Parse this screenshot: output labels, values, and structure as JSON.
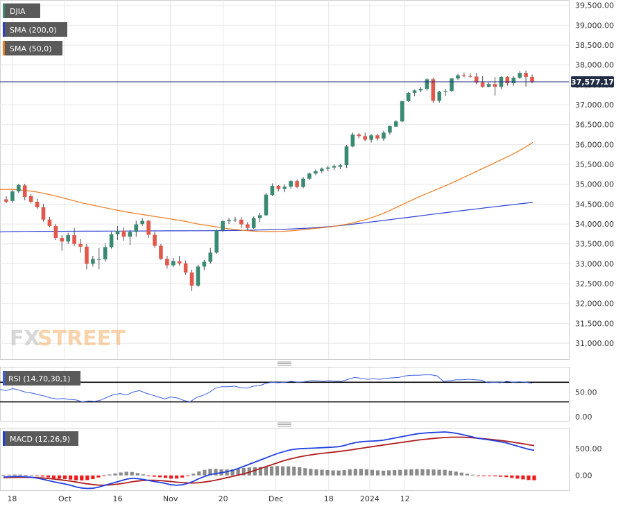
{
  "colors": {
    "bull": "#3a8a73",
    "bear": "#e2584b",
    "sma200": "#2c3fd1",
    "sma50": "#ee7a1c",
    "rsi": "#3b5ee8",
    "macd": "#1f40e0",
    "signal": "#b01c1c",
    "hist_pos": "#8a8a8a",
    "hist_neg": "#ee1c1c",
    "price_line": "#1e2a78",
    "label_bg": "#1f2c44",
    "grid": "#e6e6e6"
  },
  "legend": {
    "djia": "DJIA",
    "sma200": "SMA (200,0)",
    "sma50": "SMA (50,0)",
    "rsi": "RSI (14,70,30,1)",
    "macd": "MACD (12,26,9)"
  },
  "watermark": "FXSTREET",
  "chart_data": [
    {
      "type": "candlestick",
      "title": "",
      "symbol": "DJIA",
      "last_price_label": "37,577.17",
      "last_price": 37577.17,
      "ylim": [
        30600,
        39600
      ],
      "y_ticks": [
        31000,
        31500,
        32000,
        32500,
        33000,
        33500,
        34000,
        34500,
        35000,
        35500,
        36000,
        36500,
        37000,
        37500,
        38000,
        38500,
        39000,
        39500
      ],
      "y_tick_labels": [
        "31,000.00",
        "31,500.00",
        "32,000.00",
        "32,500.00",
        "33,000.00",
        "33,500.00",
        "34,000.00",
        "34,500.00",
        "35,000.00",
        "35,500.00",
        "36,000.00",
        "36,500.00",
        "37,000.00",
        "37,500.00",
        "38,000.00",
        "38,500.00",
        "39,000.00",
        "39,500.00"
      ],
      "x_tick_labels": [
        "18",
        "Oct",
        "16",
        "Nov",
        "20",
        "Dec",
        "18",
        "2024",
        "12"
      ],
      "x_tick_index": [
        1,
        10,
        19,
        28,
        37,
        46,
        55,
        62,
        68
      ],
      "candles": [
        [
          34620,
          34700,
          34520,
          34560
        ],
        [
          34580,
          34850,
          34540,
          34820
        ],
        [
          34820,
          35010,
          34780,
          34980
        ],
        [
          34970,
          35010,
          34600,
          34680
        ],
        [
          34700,
          34750,
          34520,
          34560
        ],
        [
          34560,
          34640,
          34380,
          34420
        ],
        [
          34420,
          34500,
          34060,
          34110
        ],
        [
          34110,
          34180,
          33920,
          33950
        ],
        [
          33950,
          34000,
          33600,
          33650
        ],
        [
          33650,
          33720,
          33330,
          33560
        ],
        [
          33560,
          33780,
          33500,
          33720
        ],
        [
          33720,
          33900,
          33450,
          33500
        ],
        [
          33500,
          33620,
          33280,
          33430
        ],
        [
          33430,
          33500,
          32860,
          33000
        ],
        [
          33000,
          33200,
          32930,
          33120
        ],
        [
          33120,
          33400,
          32860,
          33120
        ],
        [
          33110,
          33510,
          33050,
          33420
        ],
        [
          33420,
          33800,
          33380,
          33740
        ],
        [
          33740,
          33950,
          33600,
          33830
        ],
        [
          33830,
          33920,
          33580,
          33680
        ],
        [
          33680,
          33850,
          33470,
          33800
        ],
        [
          33800,
          34080,
          33680,
          33990
        ],
        [
          34000,
          34150,
          33950,
          34080
        ],
        [
          34080,
          34100,
          33650,
          33730
        ],
        [
          33730,
          33800,
          33400,
          33450
        ],
        [
          33450,
          33500,
          33100,
          33120
        ],
        [
          33120,
          33200,
          32880,
          32960
        ],
        [
          32960,
          33150,
          32920,
          33070
        ],
        [
          33060,
          33200,
          32950,
          33010
        ],
        [
          33010,
          33080,
          32720,
          32780
        ],
        [
          32780,
          32850,
          32310,
          32450
        ],
        [
          32450,
          32980,
          32420,
          32930
        ],
        [
          32930,
          33100,
          32840,
          33050
        ],
        [
          33050,
          33400,
          33000,
          33280
        ],
        [
          33280,
          33870,
          33250,
          33840
        ],
        [
          33840,
          34100,
          33800,
          34070
        ],
        [
          34070,
          34150,
          34000,
          34100
        ],
        [
          34100,
          34180,
          34050,
          34110
        ],
        [
          34110,
          34170,
          33900,
          33990
        ],
        [
          33990,
          34050,
          33850,
          33900
        ],
        [
          33900,
          34190,
          33880,
          34150
        ],
        [
          34150,
          34280,
          34050,
          34220
        ],
        [
          34220,
          34780,
          34200,
          34740
        ],
        [
          34730,
          35020,
          34700,
          34960
        ],
        [
          34960,
          34980,
          34820,
          34880
        ],
        [
          34880,
          35000,
          34800,
          34940
        ],
        [
          34940,
          35110,
          34890,
          35080
        ],
        [
          35080,
          35120,
          34900,
          34930
        ],
        [
          34930,
          35180,
          34900,
          35140
        ],
        [
          35140,
          35300,
          35100,
          35270
        ],
        [
          35270,
          35370,
          35230,
          35330
        ],
        [
          35330,
          35420,
          35280,
          35390
        ],
        [
          35390,
          35460,
          35330,
          35420
        ],
        [
          35420,
          35500,
          35350,
          35460
        ],
        [
          35440,
          35520,
          35380,
          35480
        ],
        [
          35480,
          35990,
          35410,
          35950
        ],
        [
          35950,
          36300,
          35930,
          36250
        ],
        [
          36250,
          36290,
          36150,
          36210
        ],
        [
          36210,
          36300,
          36080,
          36120
        ],
        [
          36120,
          36260,
          36050,
          36230
        ],
        [
          36230,
          36270,
          36100,
          36150
        ],
        [
          36150,
          36350,
          36090,
          36300
        ],
        [
          36300,
          36480,
          36250,
          36460
        ],
        [
          36450,
          36610,
          36440,
          36580
        ],
        [
          36580,
          37100,
          36560,
          37090
        ],
        [
          37090,
          37320,
          37070,
          37300
        ],
        [
          37300,
          37380,
          37220,
          37360
        ],
        [
          37360,
          37440,
          37310,
          37400
        ],
        [
          37400,
          37670,
          37360,
          37640
        ],
        [
          37640,
          37680,
          37050,
          37100
        ],
        [
          37100,
          37350,
          37050,
          37330
        ],
        [
          37330,
          37400,
          37220,
          37350
        ],
        [
          37350,
          37680,
          37320,
          37660
        ],
        [
          37660,
          37780,
          37620,
          37740
        ],
        [
          37740,
          37810,
          37690,
          37720
        ],
        [
          37720,
          37790,
          37680,
          37710
        ],
        [
          37710,
          37800,
          37520,
          37560
        ],
        [
          37560,
          37720,
          37430,
          37450
        ],
        [
          37450,
          37560,
          37440,
          37520
        ],
        [
          37520,
          37700,
          37230,
          37450
        ],
        [
          37450,
          37720,
          37400,
          37700
        ],
        [
          37700,
          37720,
          37480,
          37540
        ],
        [
          37540,
          37720,
          37480,
          37680
        ],
        [
          37680,
          37850,
          37650,
          37800
        ],
        [
          37800,
          37860,
          37460,
          37700
        ],
        [
          37700,
          37760,
          37540,
          37580
        ]
      ],
      "sma50": [
        34870,
        34872,
        34866,
        34850,
        34830,
        34800,
        34760,
        34720,
        34670,
        34620,
        34570,
        34520,
        34480,
        34440,
        34400,
        34360,
        34325,
        34290,
        34260,
        34230,
        34200,
        34170,
        34140,
        34110,
        34080,
        34040,
        34000,
        33970,
        33940,
        33910,
        33880,
        33860,
        33840,
        33825,
        33815,
        33810,
        33810,
        33815,
        33825,
        33840,
        33860,
        33880,
        33900,
        33920,
        33945,
        33975,
        34010,
        34060,
        34110,
        34170,
        34240,
        34320,
        34410,
        34500,
        34590,
        34680,
        34760,
        34840,
        34920,
        35000,
        35090,
        35180,
        35270,
        35360,
        35450,
        35540,
        35630,
        35720,
        35820,
        35930,
        36050
      ],
      "sma200": [
        33800,
        33805,
        33810,
        33812,
        33815,
        33816,
        33816,
        33817,
        33817,
        33818,
        33818,
        33819,
        33820,
        33820,
        33821,
        33822,
        33822,
        33823,
        33824,
        33825,
        33826,
        33827,
        33828,
        33828,
        33829,
        33830,
        33830,
        33831,
        33832,
        33834,
        33836,
        33838,
        33841,
        33845,
        33849,
        33853,
        33858,
        33865,
        33872,
        33880,
        33890,
        33902,
        33915,
        33930,
        33947,
        33966,
        33988,
        34010,
        34033,
        34057,
        34080,
        34104,
        34128,
        34152,
        34176,
        34200,
        34224,
        34248,
        34272,
        34296,
        34320,
        34343,
        34366,
        34389,
        34412,
        34434,
        34456,
        34478,
        34500,
        34522,
        34545
      ]
    },
    {
      "type": "line",
      "title": "RSI (14,70,30,1)",
      "ylim": [
        -10,
        100
      ],
      "y_ticks": [
        0,
        50
      ],
      "y_tick_labels": [
        "0.00",
        "50.00"
      ],
      "overbought": 70,
      "oversold": 30,
      "values": [
        55,
        53,
        57,
        54,
        50,
        48,
        45,
        42,
        38,
        36,
        37,
        35,
        34,
        30,
        32,
        31,
        34,
        40,
        45,
        47,
        44,
        50,
        53,
        48,
        44,
        40,
        36,
        40,
        38,
        33,
        30,
        39,
        43,
        49,
        58,
        61,
        61,
        62,
        59,
        58,
        62,
        63,
        68,
        70,
        69,
        70,
        72,
        70,
        71,
        73,
        73,
        72,
        73,
        72,
        72,
        76,
        80,
        78,
        76,
        77,
        76,
        78,
        79,
        80,
        83,
        84,
        84,
        85,
        85,
        83,
        72,
        73,
        75,
        75,
        76,
        75,
        74,
        69,
        70,
        69,
        72,
        70,
        71,
        70,
        68
      ]
    },
    {
      "type": "line",
      "title": "MACD (12,26,9)",
      "ylim": [
        -290,
        880
      ],
      "y_ticks": [
        0,
        500
      ],
      "y_tick_labels": [
        "0.00",
        "500.00"
      ],
      "macd": [
        -30,
        -25,
        -20,
        -20,
        -25,
        -35,
        -50,
        -70,
        -95,
        -120,
        -140,
        -160,
        -185,
        -215,
        -235,
        -245,
        -240,
        -220,
        -190,
        -160,
        -130,
        -100,
        -70,
        -55,
        -60,
        -75,
        -95,
        -115,
        -130,
        -150,
        -175,
        -185,
        -175,
        -150,
        -110,
        -60,
        -20,
        15,
        35,
        50,
        70,
        95,
        130,
        170,
        210,
        250,
        290,
        330,
        370,
        410,
        440,
        470,
        490,
        500,
        505,
        510,
        515,
        520,
        525,
        530,
        540,
        560,
        590,
        615,
        630,
        640,
        645,
        650,
        660,
        680,
        700,
        720,
        740,
        760,
        780,
        790,
        800,
        805,
        810,
        815,
        805,
        790,
        770,
        745,
        720,
        695,
        680,
        665,
        650,
        630,
        610,
        580,
        550,
        520,
        490,
        470
      ],
      "signal": [
        -40,
        -38,
        -36,
        -35,
        -35,
        -37,
        -42,
        -48,
        -57,
        -67,
        -79,
        -92,
        -107,
        -124,
        -142,
        -158,
        -171,
        -181,
        -183,
        -178,
        -168,
        -155,
        -139,
        -120,
        -105,
        -95,
        -90,
        -90,
        -95,
        -105,
        -115,
        -126,
        -135,
        -141,
        -142,
        -136,
        -124,
        -108,
        -88,
        -65,
        -42,
        -18,
        5,
        30,
        60,
        95,
        130,
        165,
        200,
        235,
        270,
        300,
        325,
        348,
        368,
        385,
        400,
        413,
        425,
        436,
        448,
        461,
        476,
        492,
        508,
        524,
        540,
        555,
        570,
        585,
        600,
        615,
        630,
        645,
        660,
        672,
        684,
        694,
        703,
        711,
        716,
        718,
        717,
        713,
        706,
        697,
        688,
        678,
        667,
        655,
        642,
        627,
        611,
        594,
        576,
        560
      ],
      "histogram_ratio_note": "",
      "histogram": [
        10,
        13,
        16,
        15,
        10,
        2,
        -8,
        -22,
        -38,
        -53,
        -61,
        -68,
        -78,
        -91,
        -93,
        -87,
        -69,
        -39,
        -7,
        18,
        38,
        55,
        69,
        65,
        45,
        20,
        -5,
        -25,
        -35,
        -45,
        -60,
        -59,
        -40,
        -9,
        32,
        76,
        104,
        123,
        123,
        115,
        112,
        113,
        125,
        140,
        150,
        155,
        160,
        165,
        170,
        175,
        170,
        170,
        165,
        152,
        137,
        125,
        115,
        107,
        100,
        94,
        92,
        99,
        114,
        123,
        122,
        116,
        105,
        95,
        90,
        95,
        100,
        105,
        110,
        115,
        120,
        118,
        116,
        111,
        107,
        104,
        89,
        72,
        53,
        32,
        14,
        -2,
        -8,
        -13,
        -17,
        -25,
        -32,
        -47,
        -61,
        -74,
        -86,
        -90
      ]
    }
  ]
}
